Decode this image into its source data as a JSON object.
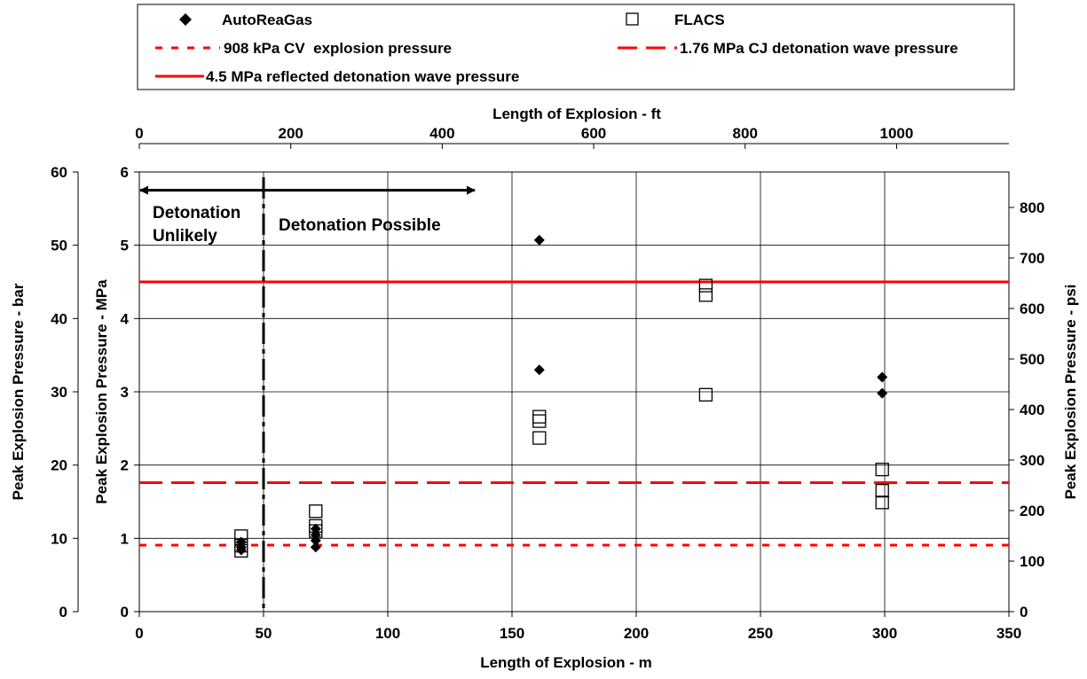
{
  "chart_data": {
    "type": "scatter",
    "xlabel": "Length of Explosion - m",
    "x2label": "Length of Explosion - ft",
    "ylabel": "Peak Explosion Pressure - MPa",
    "y_left_label": "Peak Explosion Pressure - bar",
    "y_right_label": "Peak Explosion Pressure - psi",
    "xlim": [
      0,
      350
    ],
    "ylim": [
      0,
      6
    ],
    "x2lim": [
      0,
      1148.3
    ],
    "y_left_lim": [
      0,
      60
    ],
    "y_right_lim": [
      0,
      870.2
    ],
    "grid": true,
    "legend_position": "top",
    "x_ticks": [
      "0",
      "50",
      "100",
      "150",
      "200",
      "250",
      "300",
      "350"
    ],
    "x2_ticks": [
      "0",
      "200",
      "400",
      "600",
      "800",
      "1000"
    ],
    "y_ticks": [
      "0",
      "1",
      "2",
      "3",
      "4",
      "5",
      "6"
    ],
    "y_left_ticks": [
      "0",
      "10",
      "20",
      "30",
      "40",
      "50",
      "60"
    ],
    "y_right_ticks": [
      "0",
      "100",
      "200",
      "300",
      "400",
      "500",
      "600",
      "700",
      "800"
    ],
    "series": [
      {
        "name": "AutoReaGas",
        "marker": "diamond",
        "color": "#000000",
        "points": [
          {
            "x": 41,
            "y": 0.95
          },
          {
            "x": 41,
            "y": 0.88
          },
          {
            "x": 41,
            "y": 0.84
          },
          {
            "x": 71,
            "y": 1.13
          },
          {
            "x": 71,
            "y": 1.05
          },
          {
            "x": 71,
            "y": 0.97
          },
          {
            "x": 71,
            "y": 0.88
          },
          {
            "x": 161,
            "y": 5.07
          },
          {
            "x": 161,
            "y": 3.3
          },
          {
            "x": 299,
            "y": 3.2
          },
          {
            "x": 299,
            "y": 2.98
          }
        ]
      },
      {
        "name": "FLACS",
        "marker": "open-square",
        "color": "#000000",
        "points": [
          {
            "x": 41,
            "y": 1.03
          },
          {
            "x": 41,
            "y": 0.9
          },
          {
            "x": 41,
            "y": 0.83
          },
          {
            "x": 71,
            "y": 1.37
          },
          {
            "x": 71,
            "y": 1.17
          },
          {
            "x": 71,
            "y": 1.1
          },
          {
            "x": 161,
            "y": 2.66
          },
          {
            "x": 161,
            "y": 2.6
          },
          {
            "x": 161,
            "y": 2.37
          },
          {
            "x": 228,
            "y": 4.45
          },
          {
            "x": 228,
            "y": 4.32
          },
          {
            "x": 228,
            "y": 2.96
          },
          {
            "x": 299,
            "y": 1.94
          },
          {
            "x": 299,
            "y": 1.65
          },
          {
            "x": 299,
            "y": 1.49
          }
        ]
      }
    ],
    "reference_lines": [
      {
        "name": "908 kPa CV  explosion pressure",
        "y": 0.908,
        "style": "dotted",
        "color": "#ff0000"
      },
      {
        "name": "1.76 MPa CJ detonation wave pressure",
        "y": 1.76,
        "style": "dashed",
        "color": "#ff0000"
      },
      {
        "name": "4.5 MPa reflected detonation wave pressure",
        "y": 4.5,
        "style": "solid",
        "color": "#ff0000"
      }
    ],
    "boundary": {
      "x": 50,
      "style": "dash-dot",
      "color": "#000000"
    },
    "annotations": {
      "arrow": {
        "x_from": 0,
        "x_to": 135,
        "y": 5.75
      },
      "unlikely_line1": "Detonation",
      "unlikely_line2": "Unlikely",
      "possible": "Detonation Possible"
    }
  }
}
